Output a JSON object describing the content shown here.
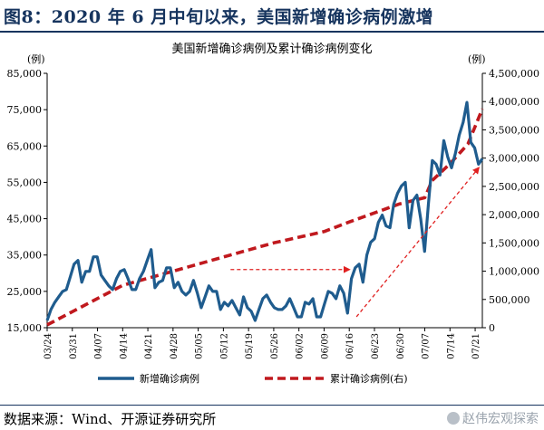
{
  "header": {
    "title": "图8：2020 年 6 月中旬以来，美国新增确诊病例激增"
  },
  "footer": {
    "source": "数据来源：Wind、开源证券研究所",
    "watermark": "赵伟宏观探索"
  },
  "colors": {
    "brand": "#16345e",
    "new_cases": "#1f5c8e",
    "cumulative": "#c0191e"
  },
  "chart_data": {
    "type": "line",
    "title": "美国新增确诊病例及累计确诊病例变化",
    "ylabel": "(例)",
    "y2label": "(例)",
    "ylim": [
      15000,
      85000
    ],
    "y2lim": [
      0,
      4500000
    ],
    "y_ticks": [
      "85,000",
      "75,000",
      "65,000",
      "55,000",
      "45,000",
      "35,000",
      "25,000",
      "15,000"
    ],
    "y2_ticks": [
      "4,500,000",
      "4,000,000",
      "3,500,000",
      "3,000,000",
      "2,500,000",
      "2,000,000",
      "1,500,000",
      "1,000,000",
      "500,000",
      "0"
    ],
    "x_ticks": [
      "03/24",
      "03/31",
      "04/07",
      "04/14",
      "04/21",
      "04/28",
      "05/05",
      "05/12",
      "05/19",
      "05/26",
      "06/02",
      "06/09",
      "06/16",
      "06/23",
      "06/30",
      "07/07",
      "07/14",
      "07/21"
    ],
    "legend_position": "bottom",
    "series": [
      {
        "name": "新增确诊病例",
        "axis": "left",
        "style": "solid",
        "color": "#1f5c8e",
        "values": [
          17000,
          20000,
          22000,
          23500,
          25000,
          25500,
          29000,
          32500,
          33500,
          27500,
          30500,
          30500,
          34500,
          34500,
          29500,
          28000,
          26500,
          25500,
          28500,
          30500,
          31000,
          28500,
          25500,
          25500,
          28500,
          30500,
          33500,
          36500,
          26000,
          27500,
          28000,
          31500,
          31500,
          26000,
          27500,
          25000,
          24000,
          25000,
          28000,
          24500,
          20500,
          23500,
          26500,
          25000,
          25000,
          20000,
          22000,
          21000,
          22500,
          20500,
          18500,
          23500,
          20500,
          19500,
          17000,
          20000,
          23000,
          24000,
          22000,
          20500,
          20000,
          20000,
          21000,
          23000,
          20500,
          18000,
          18000,
          22000,
          21500,
          23000,
          18000,
          18000,
          21500,
          25000,
          24500,
          23000,
          26500,
          24500,
          19000,
          28500,
          31500,
          32500,
          27500,
          35000,
          38500,
          39500,
          44000,
          46000,
          43000,
          42500,
          49000,
          52000,
          54000,
          55000,
          42500,
          50000,
          51500,
          45000,
          36000,
          49000,
          61000,
          60000,
          57000,
          66500,
          62000,
          59000,
          63000,
          68000,
          71500,
          77000,
          66000,
          64500,
          60000,
          61500
        ]
      },
      {
        "name": "累计确诊病例(右)",
        "axis": "right",
        "style": "dashed",
        "color": "#c0191e",
        "values": [
          50000,
          750000,
          1000000,
          1250000,
          1500000,
          1700000,
          1870000,
          2030000,
          2190000,
          2300000,
          2600000,
          2900000,
          3250000,
          3870000
        ]
      }
    ],
    "series_x_dates": {
      "new_cases_start": "03/24",
      "new_cases_end": "07/23",
      "cumulative": [
        "03/24",
        "04/14",
        "04/28",
        "05/12",
        "05/26",
        "06/09",
        "06/16",
        "06/23",
        "06/30",
        "07/07",
        "07/09",
        "07/14",
        "07/19",
        "07/23"
      ]
    },
    "annotations": [
      {
        "type": "dashed-arrow",
        "direction": "right",
        "from": {
          "x": "05/14",
          "y": 31000
        },
        "to": {
          "x": "06/16",
          "y": 31000
        }
      },
      {
        "type": "dashed-arrow",
        "direction": "up-right",
        "from": {
          "x": "06/18",
          "y": 18000
        },
        "to": {
          "x": "07/22",
          "y": 59000
        }
      }
    ]
  }
}
